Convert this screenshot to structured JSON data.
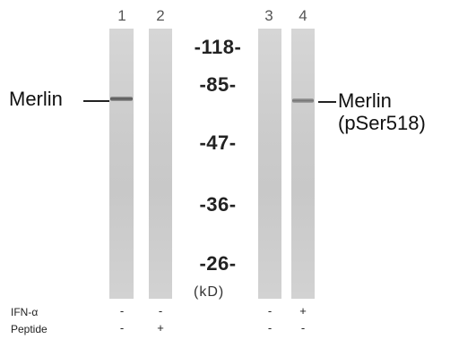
{
  "lanes": [
    {
      "number": "1",
      "ifn": "-",
      "peptide": "-"
    },
    {
      "number": "2",
      "ifn": "-",
      "peptide": "+"
    },
    {
      "number": "3",
      "ifn": "-",
      "peptide": "-"
    },
    {
      "number": "4",
      "ifn": "+",
      "peptide": "-"
    }
  ],
  "markers": [
    "-118-",
    "-85-",
    "-47-",
    "-36-",
    "-26-"
  ],
  "unit": "(kD)",
  "left_label": "Merlin",
  "right_label_line1": "Merlin",
  "right_label_line2": "(pSer518)",
  "row_labels": {
    "ifn": "IFN-α",
    "peptide": "Peptide"
  },
  "colors": {
    "lane": "#cfcfcf",
    "band": "#4a4a4a",
    "text": "#1a1a1a"
  }
}
